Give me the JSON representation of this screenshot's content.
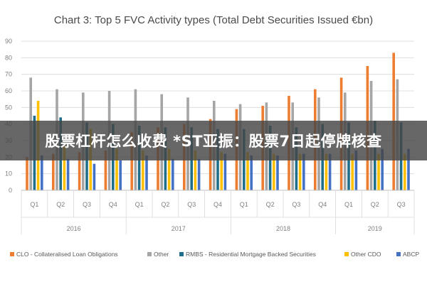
{
  "chart_data": {
    "type": "bar",
    "title": "Chart 3: Top 5 FVC Activity types (Total Debt Securities Issued €bn)",
    "ylim": [
      0,
      90
    ],
    "yticks": [
      "0",
      "10",
      "20",
      "30",
      "40",
      "50",
      "60",
      "70",
      "80",
      "90"
    ],
    "grid": true,
    "legend_position": "bottom",
    "categories": [
      "Q1",
      "Q2",
      "Q3",
      "Q4",
      "Q1",
      "Q2",
      "Q3",
      "Q4",
      "Q1",
      "Q2",
      "Q3",
      "Q4",
      "Q1",
      "Q2",
      "Q3"
    ],
    "years": [
      {
        "label": "2016",
        "count": 4
      },
      {
        "label": "2017",
        "count": 4
      },
      {
        "label": "2018",
        "count": 4
      },
      {
        "label": "2019",
        "count": 3
      }
    ],
    "series": [
      {
        "name": "CLO - Collateralised Loan Obligations",
        "color": "#ed7d31",
        "values": [
          20,
          22,
          23,
          24,
          35,
          38,
          40,
          43,
          49,
          51,
          57,
          61,
          68,
          75,
          83
        ]
      },
      {
        "name": "Other",
        "color": "#a5a5a5",
        "values": [
          68,
          61,
          59,
          60,
          61,
          58,
          56,
          54,
          52,
          53,
          53,
          56,
          59,
          66,
          67
        ]
      },
      {
        "name": "RMBS - Residential Mortgage Backed Securities",
        "color": "#1f6e8c",
        "values": [
          45,
          44,
          41,
          40,
          39,
          38,
          38,
          37,
          37,
          39,
          38,
          40,
          41,
          42,
          41
        ]
      },
      {
        "name": "Other CDO",
        "color": "#ffc000",
        "values": [
          54,
          27,
          37,
          25,
          24,
          25,
          24,
          23,
          23,
          22,
          22,
          22,
          22,
          22,
          22
        ]
      },
      {
        "name": "ABCP",
        "color": "#4472c4",
        "values": [
          21,
          19,
          16,
          18,
          21,
          19,
          19,
          22,
          21,
          21,
          22,
          22,
          24,
          25,
          25
        ]
      }
    ]
  },
  "overlay": {
    "banner_text": "股票杠杆怎么收费 *ST亚振：股票7日起停牌核查"
  }
}
